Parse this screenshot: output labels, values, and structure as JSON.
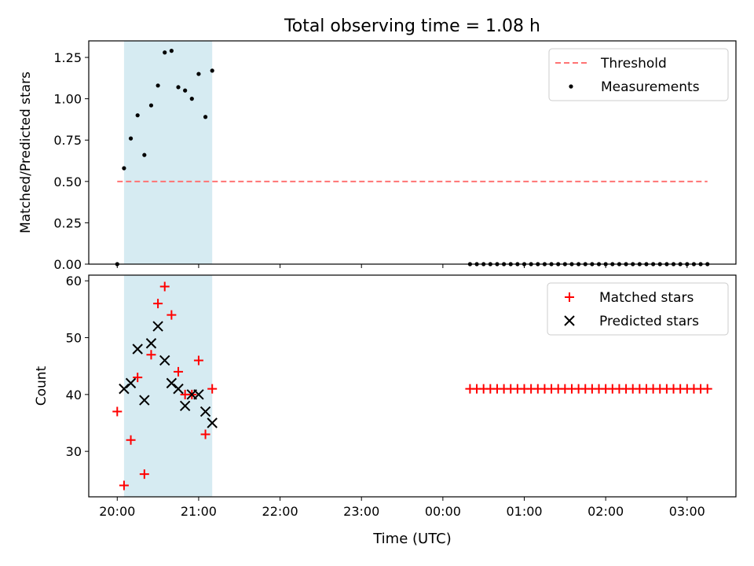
{
  "chart_data": [
    {
      "type": "scatter",
      "title": "Total observing time = 1.08 h",
      "ylabel": "Matched/Predicted stars",
      "xlabel": "",
      "xlim": [
        "19:39",
        "03:36"
      ],
      "ylim": [
        0,
        1.35
      ],
      "yticks": [
        0.0,
        0.25,
        0.5,
        0.75,
        1.0,
        1.25
      ],
      "ytick_labels": [
        "0.00",
        "0.25",
        "0.50",
        "0.75",
        "1.00",
        "1.25"
      ],
      "xticks": [
        "20:00",
        "21:00",
        "22:00",
        "23:00",
        "00:00",
        "01:00",
        "02:00",
        "03:00"
      ],
      "show_xtick_labels": false,
      "shaded_span": [
        "20:05",
        "21:10"
      ],
      "shade_color": "#add8e6",
      "legend_position": "upper right",
      "series": [
        {
          "name": "Threshold",
          "kind": "line",
          "style": "dashed",
          "color": "#ff7373",
          "x": [
            "20:00",
            "03:15"
          ],
          "y": [
            0.5,
            0.5
          ]
        },
        {
          "name": "Measurements",
          "kind": "dot",
          "color": "#000000",
          "x": [
            "20:00",
            "20:05",
            "20:10",
            "20:15",
            "20:20",
            "20:25",
            "20:30",
            "20:35",
            "20:40",
            "20:45",
            "20:50",
            "20:55",
            "21:00",
            "21:05",
            "21:10",
            "00:20",
            "00:25",
            "00:30",
            "00:35",
            "00:40",
            "00:45",
            "00:50",
            "00:55",
            "01:00",
            "01:05",
            "01:10",
            "01:15",
            "01:20",
            "01:25",
            "01:30",
            "01:35",
            "01:40",
            "01:45",
            "01:50",
            "01:55",
            "02:00",
            "02:05",
            "02:10",
            "02:15",
            "02:20",
            "02:25",
            "02:30",
            "02:35",
            "02:40",
            "02:45",
            "02:50",
            "02:55",
            "03:00",
            "03:05",
            "03:10",
            "03:15"
          ],
          "y": [
            0,
            0.58,
            0.76,
            0.9,
            0.66,
            0.96,
            1.08,
            1.28,
            1.29,
            1.07,
            1.05,
            1.0,
            1.15,
            0.89,
            1.17,
            0,
            0,
            0,
            0,
            0,
            0,
            0,
            0,
            0,
            0,
            0,
            0,
            0,
            0,
            0,
            0,
            0,
            0,
            0,
            0,
            0,
            0,
            0,
            0,
            0,
            0,
            0,
            0,
            0,
            0,
            0,
            0,
            0,
            0,
            0,
            0
          ]
        }
      ]
    },
    {
      "type": "scatter",
      "title": "",
      "ylabel": "Count",
      "xlabel": "Time (UTC)",
      "xlim": [
        "19:39",
        "03:36"
      ],
      "ylim": [
        22,
        61
      ],
      "yticks": [
        30,
        40,
        50,
        60
      ],
      "ytick_labels": [
        "30",
        "40",
        "50",
        "60"
      ],
      "xticks": [
        "20:00",
        "21:00",
        "22:00",
        "23:00",
        "00:00",
        "01:00",
        "02:00",
        "03:00"
      ],
      "xtick_labels": [
        "20:00",
        "21:00",
        "22:00",
        "23:00",
        "00:00",
        "01:00",
        "02:00",
        "03:00"
      ],
      "show_xtick_labels": true,
      "shaded_span": [
        "20:05",
        "21:10"
      ],
      "shade_color": "#add8e6",
      "legend_position": "upper right",
      "series": [
        {
          "name": "Matched stars",
          "kind": "plus",
          "color": "#ff0000",
          "x": [
            "20:00",
            "20:05",
            "20:10",
            "20:15",
            "20:20",
            "20:25",
            "20:30",
            "20:35",
            "20:40",
            "20:45",
            "20:50",
            "20:55",
            "21:00",
            "21:05",
            "21:10",
            "00:20",
            "00:25",
            "00:30",
            "00:35",
            "00:40",
            "00:45",
            "00:50",
            "00:55",
            "01:00",
            "01:05",
            "01:10",
            "01:15",
            "01:20",
            "01:25",
            "01:30",
            "01:35",
            "01:40",
            "01:45",
            "01:50",
            "01:55",
            "02:00",
            "02:05",
            "02:10",
            "02:15",
            "02:20",
            "02:25",
            "02:30",
            "02:35",
            "02:40",
            "02:45",
            "02:50",
            "02:55",
            "03:00",
            "03:05",
            "03:10",
            "03:15"
          ],
          "y": [
            37,
            24,
            32,
            43,
            26,
            47,
            56,
            59,
            54,
            44,
            40,
            40,
            46,
            33,
            41,
            41,
            41,
            41,
            41,
            41,
            41,
            41,
            41,
            41,
            41,
            41,
            41,
            41,
            41,
            41,
            41,
            41,
            41,
            41,
            41,
            41,
            41,
            41,
            41,
            41,
            41,
            41,
            41,
            41,
            41,
            41,
            41,
            41,
            41,
            41,
            41
          ]
        },
        {
          "name": "Predicted stars",
          "kind": "x",
          "color": "#000000",
          "x": [
            "20:05",
            "20:10",
            "20:15",
            "20:20",
            "20:25",
            "20:30",
            "20:35",
            "20:40",
            "20:45",
            "20:50",
            "20:55",
            "21:00",
            "21:05",
            "21:10"
          ],
          "y": [
            41,
            42,
            48,
            39,
            49,
            52,
            46,
            42,
            41,
            38,
            40,
            40,
            37,
            35
          ]
        }
      ]
    }
  ]
}
